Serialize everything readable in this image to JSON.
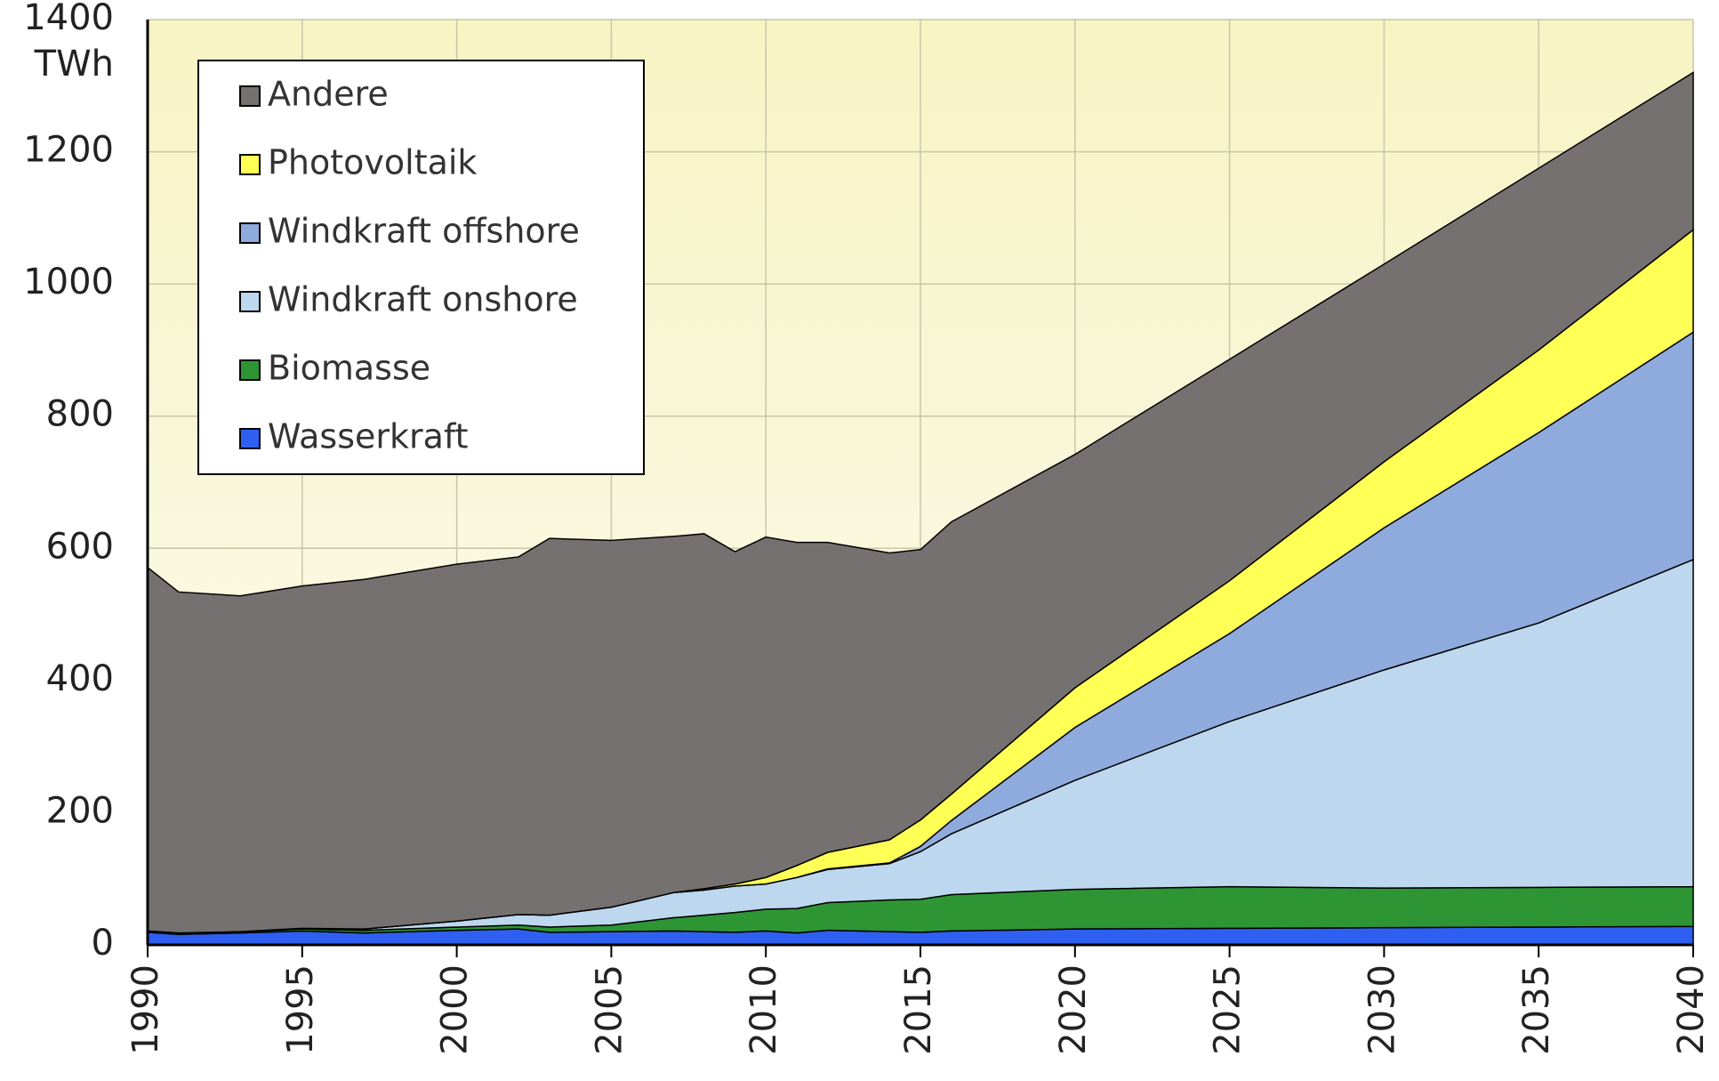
{
  "chart_data": {
    "type": "stacked-area",
    "y_label": "TWh",
    "x": [
      1990,
      1991,
      1993,
      1995,
      1997,
      2000,
      2002,
      2003,
      2005,
      2007,
      2008,
      2009,
      2010,
      2011,
      2012,
      2014,
      2015,
      2016,
      2020,
      2025,
      2030,
      2035,
      2040
    ],
    "xlim": [
      1990,
      2040
    ],
    "xticks": [
      1990,
      1995,
      2000,
      2005,
      2010,
      2015,
      2020,
      2025,
      2030,
      2035,
      2040
    ],
    "ylim": [
      0,
      1400
    ],
    "yticks": [
      0,
      200,
      400,
      600,
      800,
      1000,
      1200,
      1400
    ],
    "grid": true,
    "series": [
      {
        "name": "Wasserkraft",
        "color": "#2f5ff0",
        "values": [
          19,
          16,
          18,
          21,
          18,
          22,
          24,
          19,
          20,
          21,
          20,
          19,
          21,
          18,
          22,
          20,
          19,
          21,
          24,
          25,
          26,
          27,
          28
        ]
      },
      {
        "name": "Biomasse",
        "color": "#2e9535",
        "values": [
          2,
          2,
          2,
          3,
          4,
          5,
          6,
          8,
          10,
          20,
          25,
          30,
          33,
          37,
          42,
          48,
          50,
          55,
          60,
          63,
          60,
          60,
          60
        ]
      },
      {
        "name": "Windkraft onshore",
        "color": "#bdd7ee",
        "values": [
          0,
          0,
          0,
          1,
          2,
          9,
          16,
          18,
          27,
          38,
          38,
          40,
          38,
          47,
          50,
          55,
          72,
          92,
          165,
          250,
          330,
          400,
          495
        ]
      },
      {
        "name": "Windkraft offshore",
        "color": "#8faadc",
        "values": [
          0,
          0,
          0,
          0,
          0,
          0,
          0,
          0,
          0,
          0,
          0,
          0,
          0,
          0,
          1,
          1,
          8,
          20,
          80,
          133,
          215,
          288,
          344
        ]
      },
      {
        "name": "Photovoltaik",
        "color": "#ffff55",
        "values": [
          0,
          0,
          0,
          0,
          0,
          0,
          0,
          0,
          0,
          0,
          2,
          3,
          10,
          18,
          25,
          35,
          40,
          40,
          60,
          80,
          100,
          125,
          155
        ]
      },
      {
        "name": "Andere",
        "color": "#767171",
        "values": [
          550,
          516,
          508,
          518,
          529,
          540,
          541,
          570,
          555,
          539,
          537,
          503,
          515,
          489,
          469,
          434,
          409,
          412,
          353,
          335,
          299,
          275,
          238
        ]
      }
    ]
  }
}
